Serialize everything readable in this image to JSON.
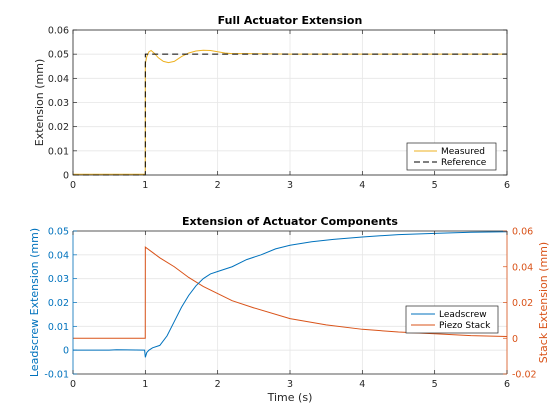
{
  "colors": {
    "measured": "#EDB120",
    "reference": "#000000",
    "leadscrew": "#0072BD",
    "piezo": "#D95319",
    "grid": "#e6e6e6",
    "axis": "#262626"
  },
  "chart_data": [
    {
      "type": "line",
      "title": "Full Actuator Extension",
      "xlabel": "",
      "ylabel": "Extension (mm)",
      "xlim": [
        0,
        6
      ],
      "ylim": [
        0,
        0.06
      ],
      "xticks": [
        "0",
        "1",
        "2",
        "3",
        "4",
        "5",
        "6"
      ],
      "yticks": [
        "0",
        "0.01",
        "0.02",
        "0.03",
        "0.04",
        "0.05",
        "0.06"
      ],
      "grid": true,
      "legend_location": "bottom-right",
      "series": [
        {
          "name": "Measured",
          "x": [
            0,
            0.999,
            1.0,
            1.02,
            1.05,
            1.08,
            1.12,
            1.18,
            1.25,
            1.32,
            1.4,
            1.5,
            1.6,
            1.7,
            1.8,
            1.9,
            2.0,
            2.1,
            2.2,
            2.4,
            2.7,
            3.0,
            3.5,
            4.0,
            5.0,
            6.0
          ],
          "y": [
            0.0003,
            0.0003,
            0.046,
            0.049,
            0.051,
            0.0515,
            0.0505,
            0.0485,
            0.047,
            0.0465,
            0.047,
            0.049,
            0.0505,
            0.0513,
            0.0516,
            0.0515,
            0.051,
            0.0505,
            0.0502,
            0.0502,
            0.0501,
            0.05,
            0.05,
            0.05,
            0.05,
            0.05
          ]
        },
        {
          "name": "Reference",
          "x": [
            0,
            1.0,
            1.0,
            6.0
          ],
          "y": [
            0,
            0,
            0.05,
            0.05
          ]
        }
      ]
    },
    {
      "type": "line",
      "title": "Extension of Actuator Components",
      "xlabel": "Time (s)",
      "ylabel": "Leadscrew Extension (mm)",
      "ylabel_right": "Stack Extension (mm)",
      "xlim": [
        0,
        6
      ],
      "ylim": [
        -0.01,
        0.05
      ],
      "ylim_right": [
        -0.02,
        0.06
      ],
      "xticks": [
        "0",
        "1",
        "2",
        "3",
        "4",
        "5",
        "6"
      ],
      "yticks": [
        "-0.01",
        "0",
        "0.01",
        "0.02",
        "0.03",
        "0.04",
        "0.05"
      ],
      "yticks_right": [
        "-0.02",
        "0",
        "0.02",
        "0.04",
        "0.06"
      ],
      "grid": true,
      "legend_location": "bottom-right",
      "series": [
        {
          "name": "Leadscrew",
          "axis": "left",
          "x": [
            0,
            0.5,
            0.6,
            0.99,
            1.0,
            1.02,
            1.05,
            1.1,
            1.2,
            1.3,
            1.4,
            1.5,
            1.6,
            1.7,
            1.8,
            1.9,
            2.0,
            2.2,
            2.4,
            2.6,
            2.8,
            3.0,
            3.3,
            3.6,
            4.0,
            4.5,
            5.0,
            5.5,
            6.0
          ],
          "y": [
            0.0,
            0.0,
            0.0002,
            0.0,
            -0.003,
            -0.001,
            0.0,
            0.001,
            0.002,
            0.006,
            0.012,
            0.018,
            0.023,
            0.027,
            0.03,
            0.032,
            0.033,
            0.035,
            0.038,
            0.04,
            0.0425,
            0.044,
            0.0455,
            0.0465,
            0.0475,
            0.0485,
            0.049,
            0.0495,
            0.0497
          ]
        },
        {
          "name": "Piezo Stack",
          "axis": "right",
          "x": [
            0,
            0.999,
            1.0,
            1.1,
            1.2,
            1.4,
            1.6,
            1.8,
            2.0,
            2.2,
            2.5,
            3.0,
            3.5,
            4.0,
            4.5,
            5.0,
            5.5,
            6.0
          ],
          "y": [
            0.0,
            0.0,
            0.051,
            0.048,
            0.045,
            0.04,
            0.034,
            0.029,
            0.025,
            0.021,
            0.017,
            0.011,
            0.0075,
            0.005,
            0.0035,
            0.0025,
            0.0015,
            0.001
          ]
        }
      ]
    }
  ]
}
